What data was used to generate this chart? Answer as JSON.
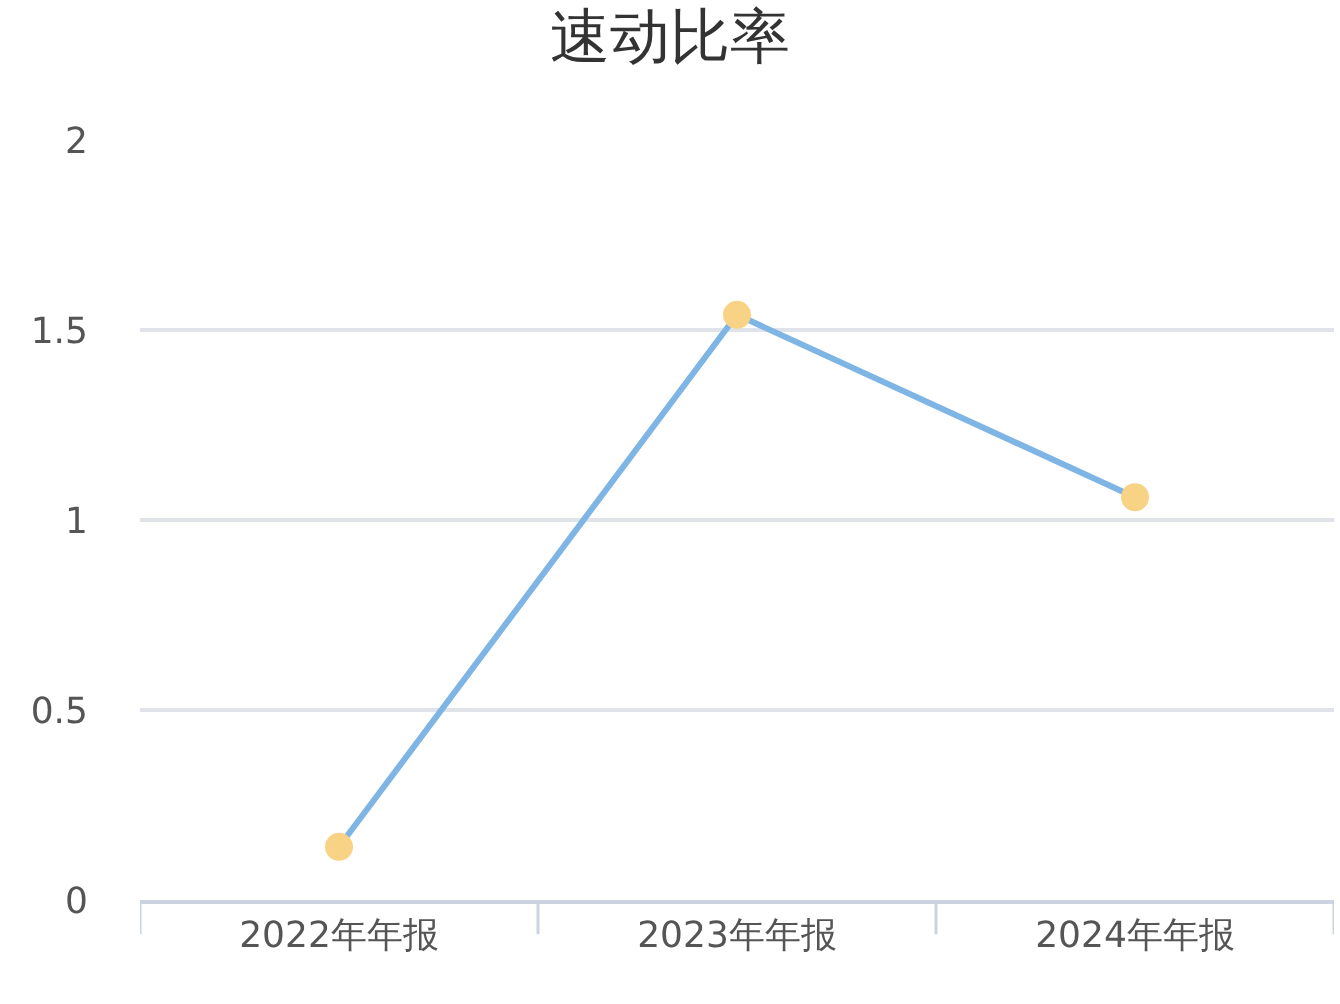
{
  "chart_data": {
    "type": "line",
    "title": "速动比率",
    "categories": [
      "2022年年报",
      "2023年年报",
      "2024年年报"
    ],
    "series": [
      {
        "color": "#7eb5e5",
        "colors": [
          "#f8d386",
          "#f8d386",
          "#f8d386"
        ],
        "values": [
          0.14,
          1.54,
          1.06
        ]
      }
    ],
    "ylim": [
      0,
      2
    ],
    "yticks": [
      0,
      0.5,
      1,
      1.5,
      2
    ],
    "grid": "y",
    "marker": "circle",
    "line_style": "solid",
    "legend": false
  }
}
